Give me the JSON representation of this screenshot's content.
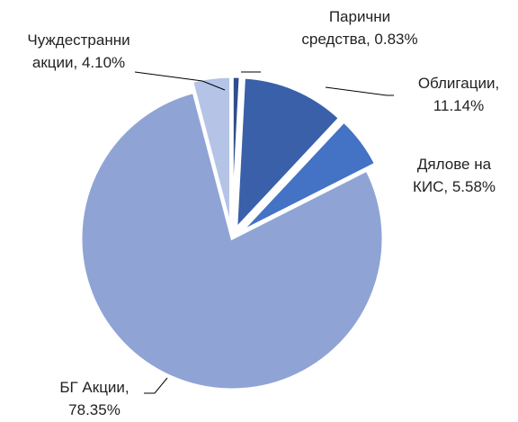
{
  "chart_data": {
    "type": "pie",
    "categories": [
      "Парични средства",
      "Облигации",
      "Дялове на КИС",
      "БГ Акции",
      "Чуждестранни акции"
    ],
    "values": [
      0.83,
      11.14,
      5.58,
      78.35,
      4.1
    ],
    "value_labels": [
      "0.83%",
      "11.14%",
      "5.58%",
      "78.35%",
      "4.10%"
    ],
    "colors": [
      "#2e4f8e",
      "#3a60aa",
      "#4472c4",
      "#8fa4d5",
      "#b4c3e6"
    ]
  }
}
